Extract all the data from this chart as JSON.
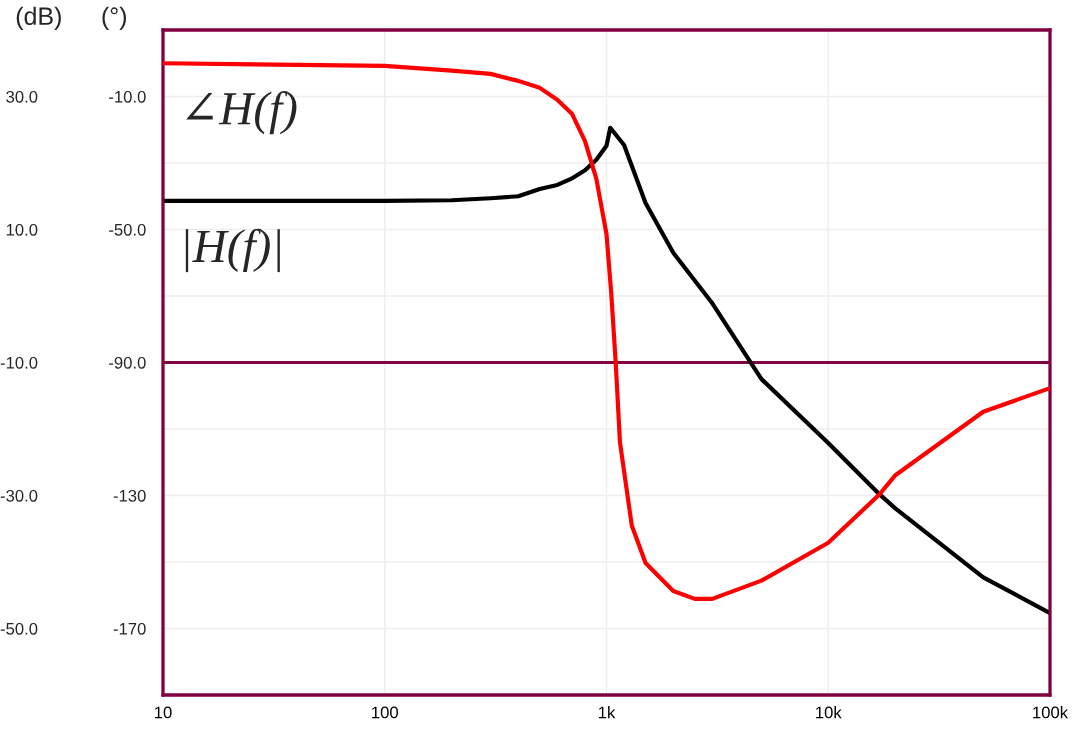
{
  "chart_data": {
    "type": "line",
    "x": [
      10,
      100,
      200,
      300,
      400,
      500,
      600,
      700,
      800,
      900,
      1000,
      1040,
      1200,
      1500,
      2000,
      3000,
      5000,
      10000,
      17000,
      20000,
      50000,
      100000
    ],
    "series": [
      {
        "name": "|H(f)|",
        "color": "#000000",
        "values": [
          14.3,
          14.3,
          14.4,
          14.7,
          15.0,
          16.1,
          16.7,
          17.7,
          18.9,
          20.5,
          22.6,
          25.3,
          22.7,
          14.0,
          6.5,
          -1.1,
          -12.5,
          -22.1,
          -29.8,
          -31.9,
          -42.3,
          -47.7
        ]
      },
      {
        "name": "∠H(f)",
        "color": "#ff0000",
        "axis": "y2",
        "x": [
          10,
          100,
          200,
          300,
          400,
          500,
          600,
          700,
          800,
          900,
          1000,
          1050,
          1100,
          1150,
          1300,
          1500,
          2000,
          2500,
          3000,
          5000,
          10000,
          17000,
          20000,
          50000,
          100000
        ],
        "values": [
          0,
          -0.8,
          -2.2,
          -3.2,
          -5.3,
          -7.4,
          -11,
          -15.3,
          -23.4,
          -34.8,
          -51.4,
          -69,
          -89.9,
          -114,
          -139,
          -150.3,
          -158.7,
          -161.1,
          -161.1,
          -155.6,
          -144.2,
          -129.7,
          -124,
          -104.8,
          -97.7
        ]
      }
    ],
    "log": "x",
    "xlim": [
      10,
      100000
    ],
    "xticks": [
      10,
      100,
      {
        "value": 1000,
        "label": "1k"
      },
      {
        "value": 10000,
        "label": "10k"
      },
      {
        "value": 100000,
        "label": "100k"
      }
    ],
    "ylim": [
      -60,
      40
    ],
    "yticks": [
      {
        "value": 40,
        "label": null
      },
      {
        "value": 30,
        "label": "30.0"
      },
      {
        "value": 20,
        "label": null
      },
      {
        "value": 10,
        "label": "10.0"
      },
      {
        "value": 0,
        "label": null
      },
      {
        "value": -10,
        "label": "-10.0"
      },
      {
        "value": -20,
        "label": null
      },
      {
        "value": -30,
        "label": "-30.0"
      },
      {
        "value": -40,
        "label": null
      },
      {
        "value": -50,
        "label": "-50.0"
      }
    ],
    "y2lim": [
      -190,
      10
    ],
    "y2ticks": [
      {
        "value": -10,
        "label": "-10.0"
      },
      {
        "value": -50,
        "label": "-50.0"
      },
      {
        "value": -90,
        "label": "-90.0"
      },
      -130,
      -170
    ],
    "ylabel": "(dB)",
    "y2label": "(°)",
    "ref_lines": [
      {
        "axis": "y",
        "value": -10,
        "color": "#800040"
      }
    ],
    "grid": true,
    "legend": false,
    "marker": "none",
    "line_style": "solid"
  }
}
